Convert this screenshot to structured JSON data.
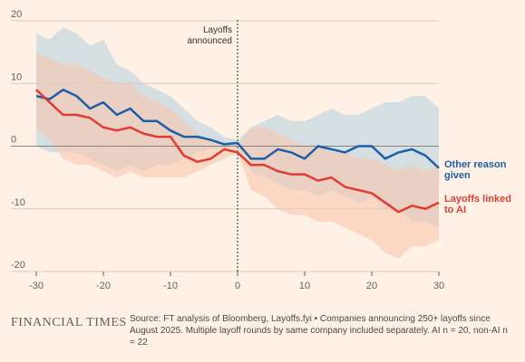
{
  "chart_data": {
    "type": "line",
    "annotation": "Layoffs announced",
    "brand": "FINANCIAL TIMES",
    "source": "Source: FT analysis of Bloomberg, Layoffs.fyi • Companies announcing 250+ layoffs since August 2025. Multiple layoff rounds by same company included separately. AI n = 20, non-AI n = 22",
    "x": [
      -30,
      -28,
      -26,
      -24,
      -22,
      -20,
      -18,
      -16,
      -14,
      -12,
      -10,
      -8,
      -6,
      -4,
      -2,
      0,
      2,
      4,
      6,
      8,
      10,
      12,
      14,
      16,
      18,
      20,
      22,
      24,
      26,
      28,
      30
    ],
    "xlim": [
      -30,
      30
    ],
    "xticks": [
      -30,
      -20,
      -10,
      0,
      10,
      20,
      30
    ],
    "ylim": [
      -20,
      20
    ],
    "yticks": [
      -20,
      -10,
      0,
      10,
      20
    ],
    "grid": true,
    "series": [
      {
        "name": "Other reason given",
        "color": "#1d5ea8",
        "band_color": "#b9d2de",
        "values": [
          8,
          7.5,
          9,
          8,
          6,
          7,
          5,
          6,
          4,
          4,
          2.5,
          1.5,
          1.5,
          1,
          0.3,
          0.5,
          -2,
          -2,
          -0.5,
          -1,
          -2,
          0,
          -0.5,
          -1,
          0,
          0,
          -2,
          -1,
          -0.5,
          -1.5,
          -3.5
        ],
        "band": {
          "upper": [
            18,
            17,
            19,
            18,
            16,
            17,
            13,
            12,
            10,
            9,
            8,
            6,
            4,
            3,
            1.5,
            1,
            3,
            4,
            5,
            4,
            4,
            5,
            6,
            5,
            5,
            6,
            7,
            7,
            8,
            8,
            6
          ],
          "lower": [
            0,
            -1,
            -1,
            -1,
            -2,
            -3,
            -4,
            -3,
            -4,
            -3,
            -3,
            -2,
            -1,
            -0.5,
            -0.5,
            0,
            -4,
            -5,
            -6,
            -7,
            -7,
            -8,
            -7,
            -8,
            -9,
            -8,
            -10,
            -10,
            -12,
            -12,
            -13
          ]
        }
      },
      {
        "name": "Layoffs linked to AI",
        "color": "#e03c31",
        "band_color": "#f8c6ae",
        "values": [
          9,
          7,
          5,
          5,
          4.5,
          3,
          2.5,
          3,
          2,
          1.5,
          1.5,
          -1.5,
          -2.5,
          -2,
          -0.5,
          -1,
          -3,
          -3,
          -4,
          -4.5,
          -4.5,
          -5.5,
          -5,
          -6.5,
          -7,
          -7.5,
          -9,
          -10.5,
          -9.5,
          -10,
          -9
        ],
        "band": {
          "upper": [
            15,
            14,
            13,
            13,
            12,
            11,
            10,
            10,
            8,
            7,
            6,
            4,
            2,
            1,
            0.5,
            0,
            3,
            3,
            2,
            1,
            0,
            0,
            -1,
            -1,
            -2,
            -2,
            -3,
            -4,
            -3,
            -4,
            -3
          ],
          "lower": [
            3,
            1,
            -2,
            -3,
            -3,
            -4,
            -5,
            -4,
            -5,
            -5,
            -5,
            -5,
            -4,
            -3,
            -2,
            -1,
            -7,
            -8,
            -10,
            -11,
            -11,
            -12,
            -12,
            -13,
            -14,
            -15,
            -17,
            -18,
            -16,
            -16,
            -15
          ]
        }
      }
    ]
  }
}
